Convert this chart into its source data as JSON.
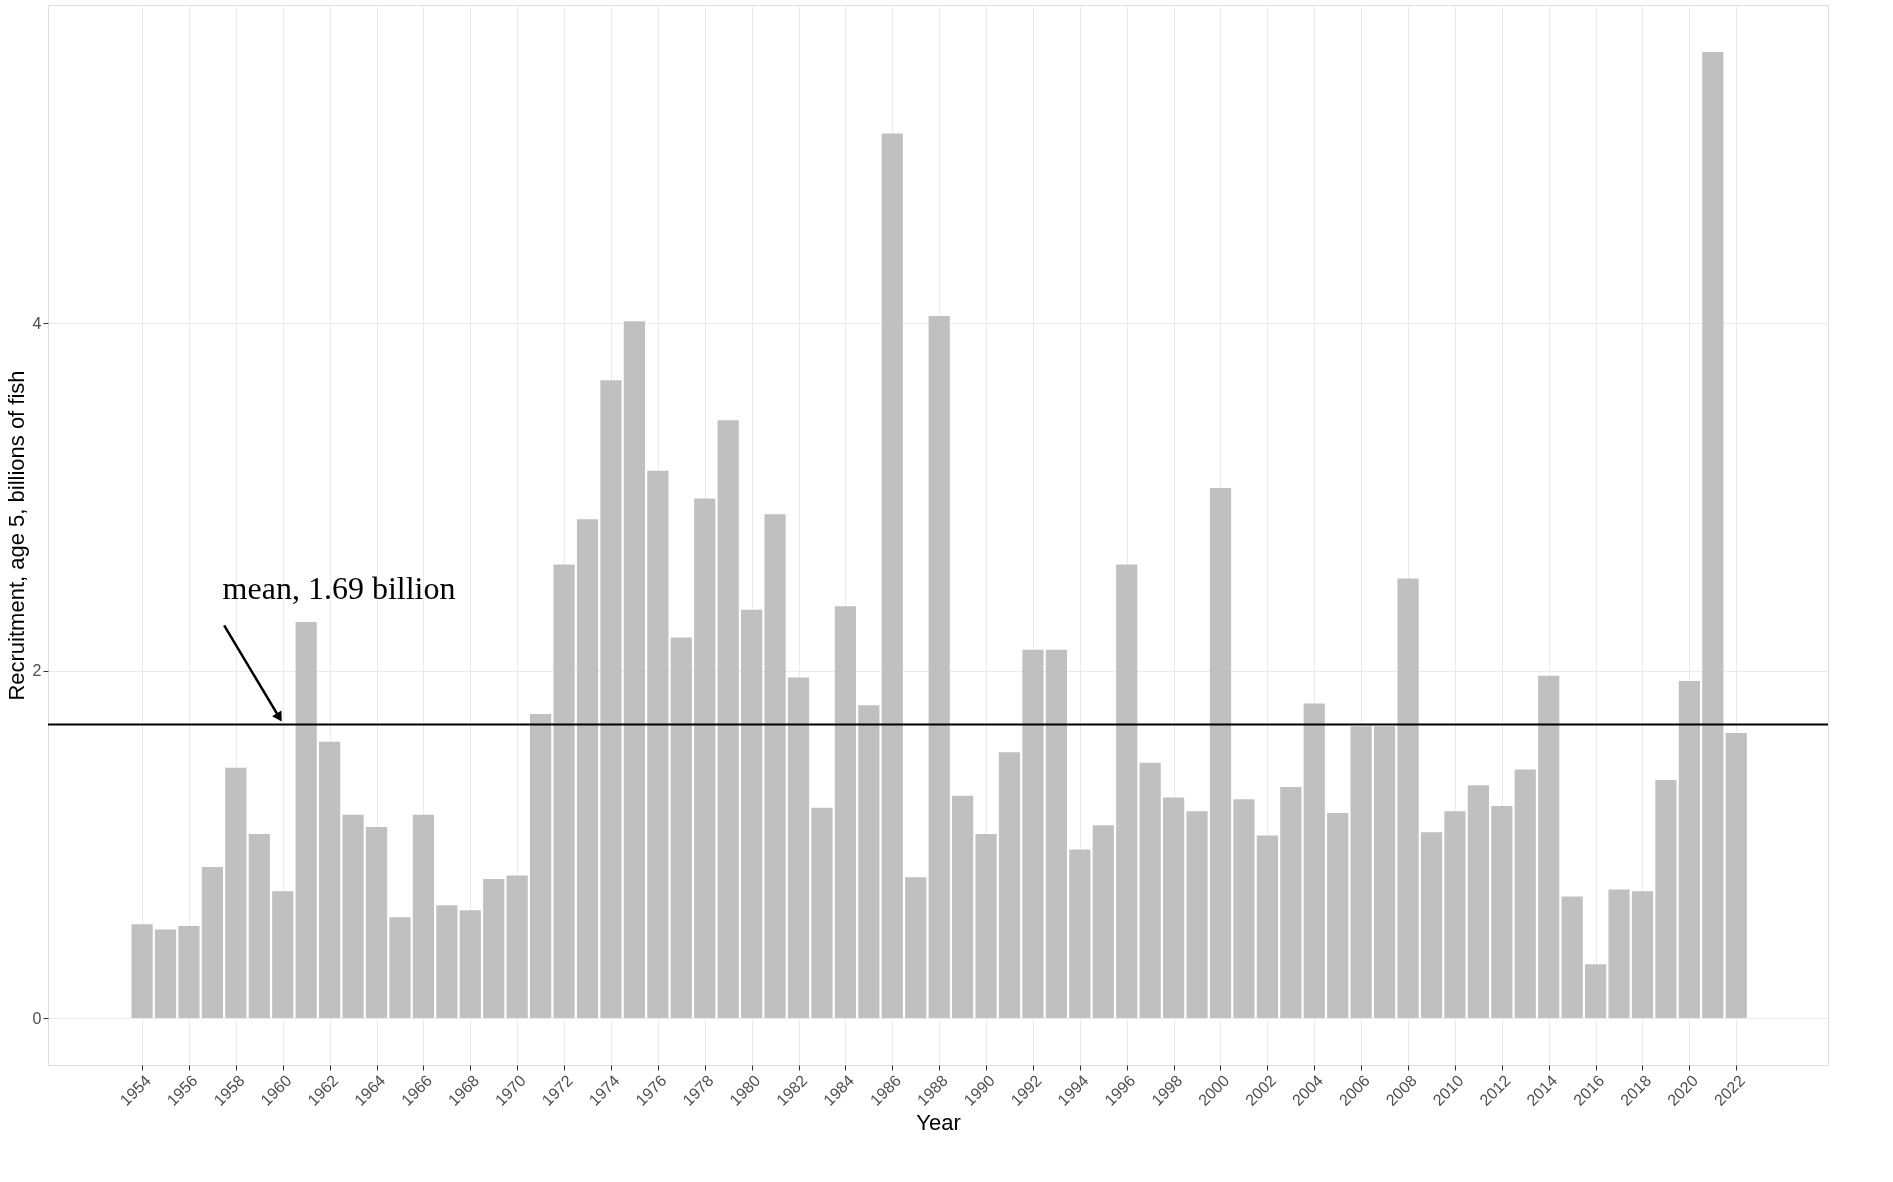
{
  "chart_data": {
    "type": "bar",
    "xlabel": "Year",
    "ylabel": "Recruitment, age 5, billions of fish",
    "x": [
      1954,
      1955,
      1956,
      1957,
      1958,
      1959,
      1960,
      1961,
      1962,
      1963,
      1964,
      1965,
      1966,
      1967,
      1968,
      1969,
      1970,
      1971,
      1972,
      1973,
      1974,
      1975,
      1976,
      1977,
      1978,
      1979,
      1980,
      1981,
      1982,
      1983,
      1984,
      1985,
      1986,
      1987,
      1988,
      1989,
      1990,
      1991,
      1992,
      1993,
      1994,
      1995,
      1996,
      1997,
      1998,
      1999,
      2000,
      2001,
      2002,
      2003,
      2004,
      2005,
      2006,
      2007,
      2008,
      2009,
      2010,
      2011,
      2012,
      2013,
      2014,
      2015,
      2016,
      2017,
      2018,
      2019,
      2020,
      2021,
      2022
    ],
    "values": [
      0.54,
      0.51,
      0.53,
      0.87,
      1.44,
      1.06,
      0.73,
      2.28,
      1.59,
      1.17,
      1.1,
      0.58,
      1.17,
      0.65,
      0.62,
      0.8,
      0.82,
      1.75,
      2.61,
      2.87,
      3.67,
      4.01,
      3.15,
      2.19,
      2.99,
      3.44,
      2.35,
      2.9,
      1.96,
      1.21,
      2.37,
      1.8,
      5.09,
      0.81,
      4.04,
      1.28,
      1.06,
      1.53,
      2.12,
      2.12,
      0.97,
      1.11,
      2.61,
      1.47,
      1.27,
      1.19,
      3.05,
      1.26,
      1.05,
      1.33,
      1.81,
      1.18,
      1.68,
      1.68,
      2.53,
      1.07,
      1.19,
      1.34,
      1.22,
      1.43,
      1.97,
      0.7,
      0.31,
      0.74,
      0.73,
      1.37,
      1.94,
      5.56,
      1.64
    ],
    "color": "#bdbdbd",
    "xlim": [
      1950.2,
      2025.7
    ],
    "xticks": [
      1954,
      1956,
      1958,
      1960,
      1962,
      1964,
      1966,
      1968,
      1970,
      1972,
      1974,
      1976,
      1978,
      1980,
      1982,
      1984,
      1986,
      1988,
      1990,
      1992,
      1994,
      1996,
      1998,
      2000,
      2002,
      2004,
      2006,
      2008,
      2010,
      2012,
      2014,
      2016,
      2018,
      2020,
      2022
    ],
    "ylim": [
      -0.27,
      5.83
    ],
    "yticks": [
      0,
      2,
      4
    ],
    "grid": true,
    "ref_lines": [
      {
        "axis": "y",
        "value": 1.69,
        "color": "#000000"
      }
    ],
    "annotations": [
      {
        "text": "mean, 1.69 billion",
        "x": 1960,
        "y": 1.69
      }
    ]
  }
}
